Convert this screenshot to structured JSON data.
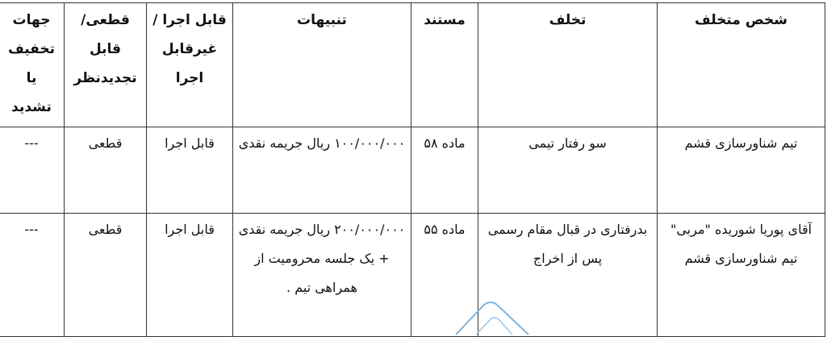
{
  "table": {
    "headers": [
      "شخص متخلف",
      "تخلف",
      "مستند",
      "تنبیهات",
      "قابل اجرا /غیرقابل اجرا",
      "قطعی/قابل تجدیدنظر",
      "جهات تخفیف یا تشدید"
    ],
    "rows": [
      [
        "تیم شناورسازی قشم",
        "سو رفتار تیمی",
        "ماده ۵۸",
        "۱۰۰/۰۰۰/۰۰۰ ریال جریمه نقدی",
        "قابل اجرا",
        "قطعی",
        "---"
      ],
      [
        "آقای پوریا شوریده \"مربی\" تیم شناورسازی قشم",
        "بدرفتاری در قبال مقام رسمی پس از اخراج",
        "ماده ۵۵",
        "۲۰۰/۰۰۰/۰۰۰ ریال جریمه نقدی + یک جلسه محرومیت از همراهی تیم .",
        "قابل اجرا",
        "قطعی",
        "---"
      ]
    ]
  },
  "colors": {
    "border": "#333333",
    "stamp": "#7fb3e0"
  }
}
